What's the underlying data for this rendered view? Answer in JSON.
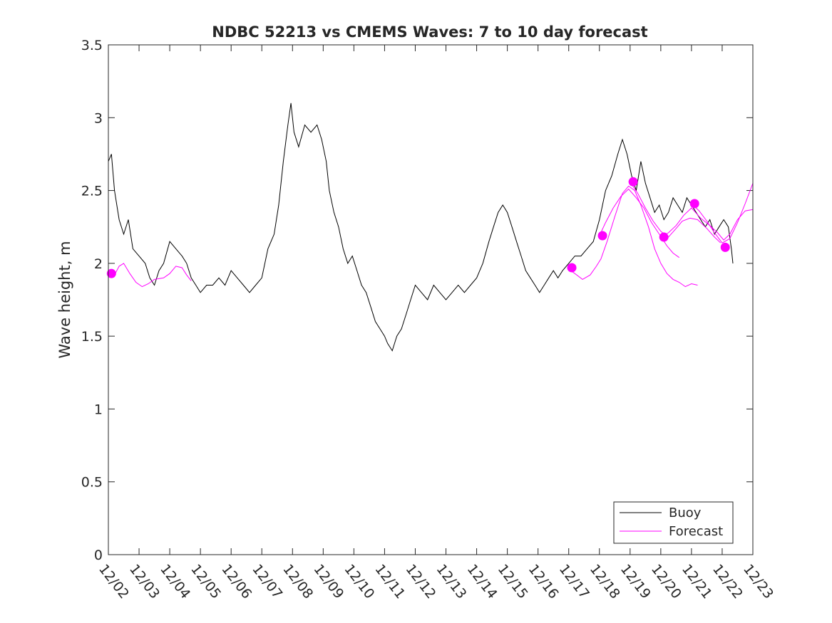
{
  "chart_data": {
    "type": "line",
    "title": "NDBC 52213 vs CMEMS Waves: 7 to 10 day forecast",
    "xlabel": "",
    "ylabel": "Wave height, m",
    "xlim": [
      0,
      21
    ],
    "ylim": [
      0,
      3.5
    ],
    "x_tick_labels": [
      "12/02",
      "12/03",
      "12/04",
      "12/05",
      "12/06",
      "12/07",
      "12/08",
      "12/09",
      "12/10",
      "12/11",
      "12/12",
      "12/13",
      "12/14",
      "12/15",
      "12/16",
      "12/17",
      "12/18",
      "12/19",
      "12/20",
      "12/21",
      "12/22",
      "12/23"
    ],
    "y_tick_labels": [
      "0",
      "0.5",
      "1",
      "1.5",
      "2",
      "2.5",
      "3",
      "3.5"
    ],
    "x_units": "days after 12/02 00:00",
    "legend_position": "bottom-right",
    "colors": {
      "buoy": "#000000",
      "forecast": "#ff00ff"
    },
    "series": [
      {
        "name": "Buoy",
        "color": "#000000",
        "points": [
          [
            0,
            2.7
          ],
          [
            0.1,
            2.75
          ],
          [
            0.2,
            2.5
          ],
          [
            0.35,
            2.3
          ],
          [
            0.5,
            2.2
          ],
          [
            0.65,
            2.3
          ],
          [
            0.8,
            2.1
          ],
          [
            1,
            2.05
          ],
          [
            1.2,
            2.0
          ],
          [
            1.35,
            1.9
          ],
          [
            1.5,
            1.85
          ],
          [
            1.65,
            1.95
          ],
          [
            1.8,
            2.0
          ],
          [
            2,
            2.15
          ],
          [
            2.2,
            2.1
          ],
          [
            2.4,
            2.05
          ],
          [
            2.55,
            2.0
          ],
          [
            2.7,
            1.9
          ],
          [
            2.85,
            1.85
          ],
          [
            3,
            1.8
          ],
          [
            3.2,
            1.85
          ],
          [
            3.4,
            1.85
          ],
          [
            3.6,
            1.9
          ],
          [
            3.8,
            1.85
          ],
          [
            4,
            1.95
          ],
          [
            4.2,
            1.9
          ],
          [
            4.4,
            1.85
          ],
          [
            4.6,
            1.8
          ],
          [
            4.8,
            1.85
          ],
          [
            5,
            1.9
          ],
          [
            5.2,
            2.1
          ],
          [
            5.4,
            2.2
          ],
          [
            5.55,
            2.4
          ],
          [
            5.7,
            2.7
          ],
          [
            5.85,
            2.95
          ],
          [
            5.95,
            3.1
          ],
          [
            6.05,
            2.9
          ],
          [
            6.2,
            2.8
          ],
          [
            6.4,
            2.95
          ],
          [
            6.6,
            2.9
          ],
          [
            6.8,
            2.95
          ],
          [
            6.95,
            2.85
          ],
          [
            7.1,
            2.7
          ],
          [
            7.2,
            2.5
          ],
          [
            7.35,
            2.35
          ],
          [
            7.5,
            2.25
          ],
          [
            7.65,
            2.1
          ],
          [
            7.8,
            2.0
          ],
          [
            7.95,
            2.05
          ],
          [
            8.1,
            1.95
          ],
          [
            8.25,
            1.85
          ],
          [
            8.4,
            1.8
          ],
          [
            8.55,
            1.7
          ],
          [
            8.7,
            1.6
          ],
          [
            8.85,
            1.55
          ],
          [
            9,
            1.5
          ],
          [
            9.1,
            1.45
          ],
          [
            9.25,
            1.4
          ],
          [
            9.4,
            1.5
          ],
          [
            9.55,
            1.55
          ],
          [
            9.7,
            1.65
          ],
          [
            9.85,
            1.75
          ],
          [
            10,
            1.85
          ],
          [
            10.2,
            1.8
          ],
          [
            10.4,
            1.75
          ],
          [
            10.6,
            1.85
          ],
          [
            10.8,
            1.8
          ],
          [
            11,
            1.75
          ],
          [
            11.2,
            1.8
          ],
          [
            11.4,
            1.85
          ],
          [
            11.6,
            1.8
          ],
          [
            11.8,
            1.85
          ],
          [
            12,
            1.9
          ],
          [
            12.2,
            2.0
          ],
          [
            12.4,
            2.15
          ],
          [
            12.55,
            2.25
          ],
          [
            12.7,
            2.35
          ],
          [
            12.85,
            2.4
          ],
          [
            13,
            2.35
          ],
          [
            13.15,
            2.25
          ],
          [
            13.3,
            2.15
          ],
          [
            13.45,
            2.05
          ],
          [
            13.6,
            1.95
          ],
          [
            13.75,
            1.9
          ],
          [
            13.9,
            1.85
          ],
          [
            14.05,
            1.8
          ],
          [
            14.2,
            1.85
          ],
          [
            14.35,
            1.9
          ],
          [
            14.5,
            1.95
          ],
          [
            14.65,
            1.9
          ],
          [
            14.8,
            1.95
          ],
          [
            15,
            2.0
          ],
          [
            15.2,
            2.05
          ],
          [
            15.4,
            2.05
          ],
          [
            15.6,
            2.1
          ],
          [
            15.8,
            2.15
          ],
          [
            16,
            2.3
          ],
          [
            16.2,
            2.5
          ],
          [
            16.4,
            2.6
          ],
          [
            16.6,
            2.75
          ],
          [
            16.75,
            2.85
          ],
          [
            16.9,
            2.75
          ],
          [
            17.05,
            2.6
          ],
          [
            17.2,
            2.5
          ],
          [
            17.35,
            2.7
          ],
          [
            17.5,
            2.55
          ],
          [
            17.65,
            2.45
          ],
          [
            17.8,
            2.35
          ],
          [
            17.95,
            2.4
          ],
          [
            18.1,
            2.3
          ],
          [
            18.25,
            2.35
          ],
          [
            18.4,
            2.45
          ],
          [
            18.55,
            2.4
          ],
          [
            18.7,
            2.35
          ],
          [
            18.85,
            2.45
          ],
          [
            19,
            2.4
          ],
          [
            19.15,
            2.35
          ],
          [
            19.3,
            2.3
          ],
          [
            19.45,
            2.25
          ],
          [
            19.6,
            2.3
          ],
          [
            19.75,
            2.2
          ],
          [
            19.9,
            2.25
          ],
          [
            20.05,
            2.3
          ],
          [
            20.2,
            2.25
          ],
          [
            20.3,
            2.1
          ],
          [
            20.35,
            2.0
          ]
        ]
      },
      {
        "name": "Forecast",
        "color": "#ff00ff",
        "segments": [
          [
            [
              0,
              1.92
            ],
            [
              0.2,
              1.92
            ],
            [
              0.35,
              1.98
            ],
            [
              0.5,
              2.0
            ],
            [
              0.7,
              1.93
            ],
            [
              0.9,
              1.87
            ],
            [
              1.1,
              1.84
            ],
            [
              1.3,
              1.86
            ],
            [
              1.5,
              1.89
            ],
            [
              1.8,
              1.9
            ],
            [
              2.0,
              1.93
            ],
            [
              2.2,
              1.98
            ],
            [
              2.4,
              1.97
            ],
            [
              2.55,
              1.92
            ],
            [
              2.7,
              1.88
            ]
          ],
          [
            [
              15,
              1.96
            ],
            [
              15.2,
              1.93
            ],
            [
              15.45,
              1.89
            ],
            [
              15.7,
              1.92
            ],
            [
              15.9,
              1.98
            ],
            [
              16.05,
              2.03
            ],
            [
              16.25,
              2.15
            ],
            [
              16.5,
              2.32
            ],
            [
              16.75,
              2.48
            ],
            [
              16.95,
              2.53
            ],
            [
              17.15,
              2.5
            ],
            [
              17.35,
              2.4
            ],
            [
              17.6,
              2.25
            ],
            [
              17.8,
              2.1
            ],
            [
              18.0,
              2.0
            ],
            [
              18.2,
              1.93
            ],
            [
              18.4,
              1.89
            ],
            [
              18.6,
              1.87
            ],
            [
              18.8,
              1.84
            ],
            [
              19.0,
              1.86
            ],
            [
              19.2,
              1.85
            ]
          ],
          [
            [
              16,
              2.19
            ],
            [
              16.2,
              2.28
            ],
            [
              16.45,
              2.38
            ],
            [
              16.7,
              2.46
            ],
            [
              16.95,
              2.51
            ],
            [
              17.2,
              2.45
            ],
            [
              17.45,
              2.38
            ],
            [
              17.7,
              2.28
            ],
            [
              17.95,
              2.2
            ],
            [
              18.2,
              2.12
            ],
            [
              18.4,
              2.07
            ],
            [
              18.6,
              2.04
            ]
          ],
          [
            [
              17,
              2.56
            ],
            [
              17.25,
              2.48
            ],
            [
              17.5,
              2.38
            ],
            [
              17.75,
              2.29
            ],
            [
              18.0,
              2.22
            ],
            [
              18.25,
              2.18
            ],
            [
              18.5,
              2.24
            ],
            [
              18.7,
              2.29
            ],
            [
              18.95,
              2.31
            ],
            [
              19.2,
              2.3
            ],
            [
              19.5,
              2.24
            ],
            [
              19.75,
              2.18
            ],
            [
              19.95,
              2.14
            ]
          ],
          [
            [
              18,
              2.18
            ],
            [
              18.25,
              2.21
            ],
            [
              18.5,
              2.26
            ],
            [
              18.75,
              2.33
            ],
            [
              19.0,
              2.38
            ],
            [
              19.3,
              2.31
            ],
            [
              19.6,
              2.26
            ],
            [
              19.85,
              2.21
            ],
            [
              20.05,
              2.16
            ],
            [
              20.25,
              2.2
            ],
            [
              20.5,
              2.3
            ],
            [
              20.75,
              2.36
            ],
            [
              21,
              2.37
            ]
          ],
          [
            [
              19,
              2.41
            ],
            [
              19.25,
              2.36
            ],
            [
              19.5,
              2.29
            ],
            [
              19.75,
              2.21
            ],
            [
              20.0,
              2.14
            ],
            [
              20.25,
              2.17
            ],
            [
              20.5,
              2.28
            ],
            [
              20.75,
              2.41
            ],
            [
              21,
              2.55
            ]
          ]
        ],
        "markers": [
          [
            0.1,
            1.93
          ],
          [
            15.1,
            1.97
          ],
          [
            16.1,
            2.19
          ],
          [
            17.1,
            2.56
          ],
          [
            18.1,
            2.18
          ],
          [
            19.1,
            2.41
          ],
          [
            20.1,
            2.11
          ]
        ]
      }
    ]
  }
}
